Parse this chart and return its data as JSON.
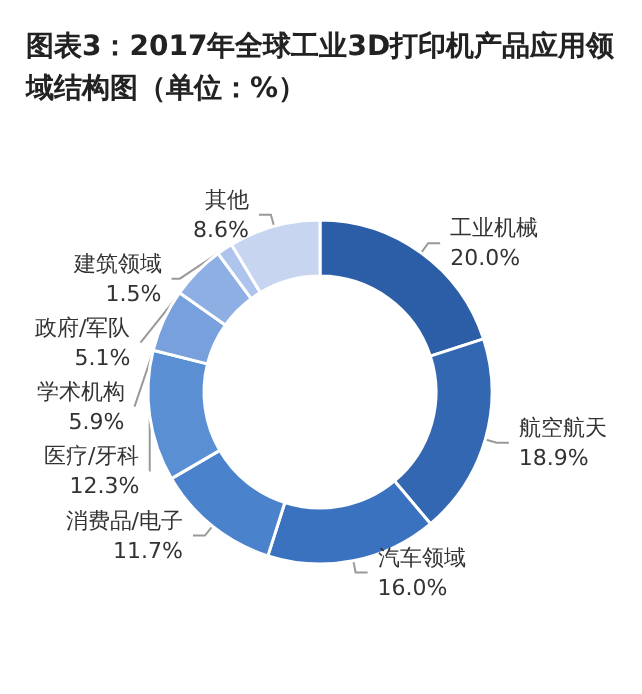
{
  "chart_data": {
    "type": "donut",
    "title": "图表3：2017年全球工业3D打印机产品应用领域结构图（单位：%）",
    "categories": [
      "工业机械",
      "航空航天",
      "汽车领域",
      "消费品/电子",
      "医疗/牙科",
      "学术机构",
      "政府/军队",
      "建筑领域",
      "其他"
    ],
    "values": [
      20.0,
      18.9,
      16.0,
      11.7,
      12.3,
      5.9,
      5.1,
      1.5,
      8.6
    ],
    "value_labels": [
      "20.0%",
      "18.9%",
      "16.0%",
      "11.7%",
      "12.3%",
      "5.9%",
      "5.1%",
      "1.5%",
      "8.6%"
    ],
    "colors": [
      "#2c5ea8",
      "#3467b2",
      "#3b72c0",
      "#4a82cc",
      "#5a8fd4",
      "#77a0dc",
      "#8dafe3",
      "#aec4ec",
      "#c8d5f0"
    ],
    "legend": false
  }
}
